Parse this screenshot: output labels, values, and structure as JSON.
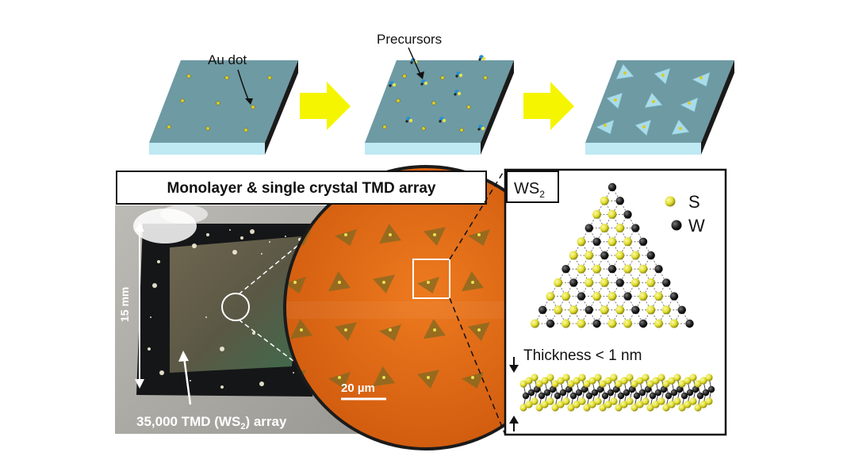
{
  "labels": {
    "au_dot": "Au dot",
    "precursors": "Precursors",
    "title_box": "Monolayer & single crystal TMD array",
    "ws2_main": "WS",
    "ws2_sub": "2",
    "legend_s": "S",
    "legend_w": "W",
    "thickness": "Thickness < 1 nm",
    "scale_bar": "20 µm",
    "size_label": "15 mm",
    "array_prefix": "35,000 TMD (WS",
    "array_sub": "2",
    "array_suffix": ") array"
  },
  "colors": {
    "substrate_top": "#6e9aa3",
    "substrate_front": "#bfe9f3",
    "substrate_side": "#1a1a1a",
    "arrow": "#f5f500",
    "triangle": "#a9dcea",
    "au_dot": "#d8cc2a",
    "orange": "#e06a15",
    "sulfur": "#e4e23a",
    "tungsten": "#202020"
  },
  "icons": {
    "process_arrow": "block-arrow-right",
    "precursor": "precursor-cluster",
    "crystal": "triangle-crystal"
  }
}
